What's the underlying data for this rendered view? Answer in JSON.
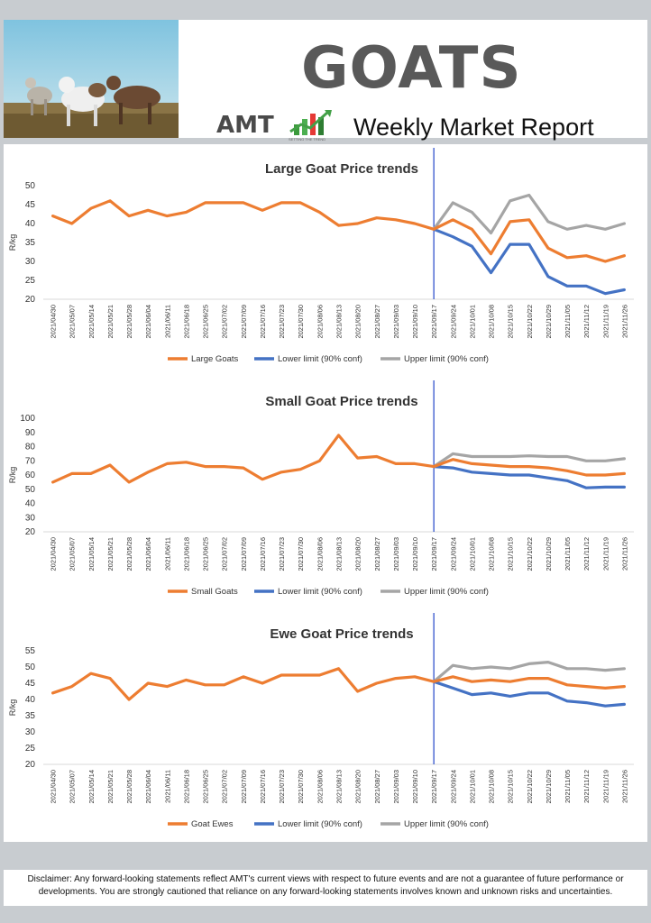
{
  "header": {
    "title": "GOATS",
    "logo_text": "AMT",
    "logo_tagline": "SETTING THE TREND",
    "subtitle": "Weekly Market Report"
  },
  "disclaimer": "Disclaimer:  Any forward-looking statements reflect AMT's current views with respect to future events and are not a guarantee of future performance or developments. You are strongly cautioned that reliance on any forward-looking statements involves known and unknown risks and uncertainties.",
  "colors": {
    "price": "#ed7d31",
    "lower": "#4472c4",
    "upper": "#a5a5a5",
    "divider": "#3355cc"
  },
  "chart_data": [
    {
      "type": "line",
      "title": "Large Goat Price trends",
      "ylabel": "R/kg",
      "ylim": [
        20,
        50
      ],
      "yticks": [
        20,
        25,
        30,
        35,
        40,
        45,
        50
      ],
      "grid": false,
      "legend_position": "bottom",
      "categories": [
        "2021/04/30",
        "2021/05/07",
        "2021/05/14",
        "2021/05/21",
        "2021/05/28",
        "2021/06/04",
        "2021/06/11",
        "2021/06/18",
        "2021/06/25",
        "2021/07/02",
        "2021/07/09",
        "2021/07/16",
        "2021/07/23",
        "2021/07/30",
        "2021/08/06",
        "2021/08/13",
        "2021/08/20",
        "2021/08/27",
        "2021/09/03",
        "2021/09/10",
        "2021/09/17",
        "2021/09/24",
        "2021/10/01",
        "2021/10/08",
        "2021/10/15",
        "2021/10/22",
        "2021/10/29",
        "2021/11/05",
        "2021/11/12",
        "2021/11/19",
        "2021/11/26"
      ],
      "series": [
        {
          "name": "Large Goats",
          "color": "#ed7d31",
          "values": [
            42,
            40,
            44,
            46,
            42,
            43.5,
            42,
            43,
            45.5,
            45.5,
            45.5,
            43.5,
            45.5,
            45.5,
            43,
            39.5,
            40,
            41.5,
            41,
            40,
            38.5,
            41,
            38.5,
            32,
            40.5,
            41,
            33.5,
            31,
            31.5,
            30,
            31.5
          ]
        },
        {
          "name": "Lower limit (90% conf)",
          "color": "#4472c4",
          "values": [
            null,
            null,
            null,
            null,
            null,
            null,
            null,
            null,
            null,
            null,
            null,
            null,
            null,
            null,
            null,
            null,
            null,
            null,
            null,
            null,
            38.5,
            36.5,
            34,
            27,
            34.5,
            34.5,
            26,
            23.5,
            23.5,
            21.5,
            22.5
          ]
        },
        {
          "name": "Upper limit (90% conf)",
          "color": "#a5a5a5",
          "values": [
            null,
            null,
            null,
            null,
            null,
            null,
            null,
            null,
            null,
            null,
            null,
            null,
            null,
            null,
            null,
            null,
            null,
            null,
            null,
            null,
            38.5,
            45.5,
            43,
            37.5,
            46,
            47.5,
            40.5,
            38.5,
            39.5,
            38.5,
            40
          ]
        }
      ]
    },
    {
      "type": "line",
      "title": "Small Goat Price trends",
      "ylabel": "R/kg",
      "ylim": [
        20,
        100
      ],
      "yticks": [
        20,
        30,
        40,
        50,
        60,
        70,
        80,
        90,
        100
      ],
      "grid": false,
      "legend_position": "bottom",
      "categories": [
        "2021/04/30",
        "2021/05/07",
        "2021/05/14",
        "2021/05/21",
        "2021/05/28",
        "2021/06/04",
        "2021/06/11",
        "2021/06/18",
        "2021/06/25",
        "2021/07/02",
        "2021/07/09",
        "2021/07/16",
        "2021/07/23",
        "2021/07/30",
        "2021/08/06",
        "2021/08/13",
        "2021/08/20",
        "2021/08/27",
        "2021/09/03",
        "2021/09/10",
        "2021/09/17",
        "2021/09/24",
        "2021/10/01",
        "2021/10/08",
        "2021/10/15",
        "2021/10/22",
        "2021/10/29",
        "2021/11/05",
        "2021/11/12",
        "2021/11/19",
        "2021/11/26"
      ],
      "series": [
        {
          "name": "Small Goats",
          "color": "#ed7d31",
          "values": [
            55,
            61,
            61,
            67,
            55,
            62,
            68,
            69,
            66,
            66,
            65,
            57,
            62,
            64,
            70,
            88,
            72,
            73,
            68,
            68,
            66,
            71,
            68,
            67,
            66,
            66,
            65,
            63,
            60,
            60,
            61
          ]
        },
        {
          "name": "Lower limit (90% conf)",
          "color": "#4472c4",
          "values": [
            null,
            null,
            null,
            null,
            null,
            null,
            null,
            null,
            null,
            null,
            null,
            null,
            null,
            null,
            null,
            null,
            null,
            null,
            null,
            null,
            66,
            65,
            62,
            61,
            60,
            60,
            58,
            56,
            51,
            51.5,
            51.5
          ]
        },
        {
          "name": "Upper limit (90% conf)",
          "color": "#a5a5a5",
          "values": [
            null,
            null,
            null,
            null,
            null,
            null,
            null,
            null,
            null,
            null,
            null,
            null,
            null,
            null,
            null,
            null,
            null,
            null,
            null,
            null,
            66,
            75,
            73,
            73,
            73,
            73.5,
            73,
            73,
            70,
            70,
            71.5
          ]
        }
      ]
    },
    {
      "type": "line",
      "title": "Ewe Goat Price trends",
      "ylabel": "R/kg",
      "ylim": [
        20,
        55
      ],
      "yticks": [
        20,
        25,
        30,
        35,
        40,
        45,
        50,
        55
      ],
      "grid": false,
      "legend_position": "bottom",
      "categories": [
        "2021/04/30",
        "2021/05/07",
        "2021/05/14",
        "2021/05/21",
        "2021/05/28",
        "2021/06/04",
        "2021/06/11",
        "2021/06/18",
        "2021/06/25",
        "2021/07/02",
        "2021/07/09",
        "2021/07/16",
        "2021/07/23",
        "2021/07/30",
        "2021/08/06",
        "2021/08/13",
        "2021/08/20",
        "2021/08/27",
        "2021/09/03",
        "2021/09/10",
        "2021/09/17",
        "2021/09/24",
        "2021/10/01",
        "2021/10/08",
        "2021/10/15",
        "2021/10/22",
        "2021/10/29",
        "2021/11/05",
        "2021/11/12",
        "2021/11/19",
        "2021/11/26"
      ],
      "series": [
        {
          "name": "Goat Ewes",
          "color": "#ed7d31",
          "values": [
            42,
            44,
            48,
            46.5,
            40,
            45,
            44,
            46,
            44.5,
            44.5,
            47,
            45,
            47.5,
            47.5,
            47.5,
            49.5,
            42.5,
            45,
            46.5,
            47,
            45.5,
            47,
            45.5,
            46,
            45.5,
            46.5,
            46.5,
            44.5,
            44,
            43.5,
            44
          ]
        },
        {
          "name": "Lower limit (90% conf)",
          "color": "#4472c4",
          "values": [
            null,
            null,
            null,
            null,
            null,
            null,
            null,
            null,
            null,
            null,
            null,
            null,
            null,
            null,
            null,
            null,
            null,
            null,
            null,
            null,
            45.5,
            43.5,
            41.5,
            42,
            41,
            42,
            42,
            39.5,
            39,
            38,
            38.5
          ]
        },
        {
          "name": "Upper limit (90% conf)",
          "color": "#a5a5a5",
          "values": [
            null,
            null,
            null,
            null,
            null,
            null,
            null,
            null,
            null,
            null,
            null,
            null,
            null,
            null,
            null,
            null,
            null,
            null,
            null,
            null,
            45.5,
            50.5,
            49.5,
            50,
            49.5,
            51,
            51.5,
            49.5,
            49.5,
            49,
            49.5
          ]
        }
      ]
    }
  ]
}
